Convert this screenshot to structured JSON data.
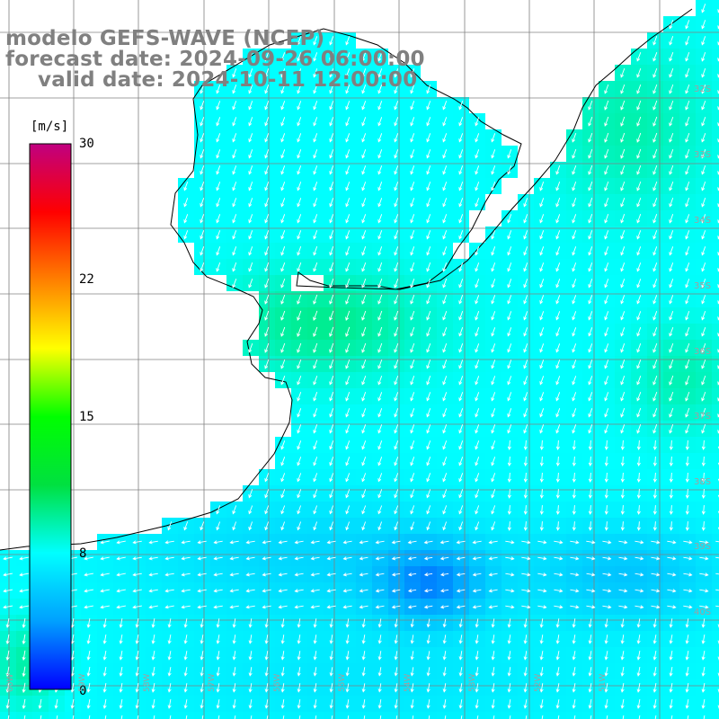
{
  "title": {
    "line1": "modelo GEFS-WAVE (NCEP)",
    "line2": "forecast date: 2024-09-26 06:00:00",
    "line3": "valid date: 2024-10-11 12:00:00"
  },
  "colorbar": {
    "unit": "[m/s]",
    "ticks": [
      "30",
      "22",
      "15",
      "8",
      "0"
    ],
    "tick_values": [
      30,
      22,
      15,
      8,
      0
    ],
    "stops": [
      "#0000ff",
      "#00a0ff",
      "#00ffff",
      "#00e040",
      "#00ff00",
      "#ffff00",
      "#ff8000",
      "#ff0000",
      "#c00080"
    ]
  },
  "lat_labels": [
    "32S",
    "33S",
    "34S",
    "35S",
    "36S",
    "37S",
    "38S",
    "39S",
    "40S"
  ],
  "lon_labels": [
    "60W",
    "59W",
    "58W",
    "57W",
    "56W",
    "55W",
    "54W",
    "53W",
    "52W",
    "51W"
  ],
  "colors": {
    "land": "#ffffff",
    "grid": "#808080",
    "coast": "#000000",
    "arrow": "#ffffff"
  }
}
